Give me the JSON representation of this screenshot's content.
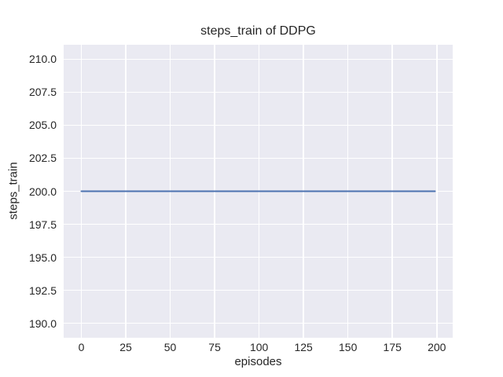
{
  "chart_data": {
    "type": "line",
    "title": "steps_train of DDPG",
    "xlabel": "episodes",
    "ylabel": "steps_train",
    "xlim": [
      -9.95,
      208.95
    ],
    "ylim": [
      188.9,
      211.1
    ],
    "x_ticks": [
      0,
      25,
      50,
      75,
      100,
      125,
      150,
      175,
      200
    ],
    "x_tick_labels": [
      "0",
      "25",
      "50",
      "75",
      "100",
      "125",
      "150",
      "175",
      "200"
    ],
    "y_ticks": [
      190.0,
      192.5,
      195.0,
      197.5,
      200.0,
      202.5,
      205.0,
      207.5,
      210.0
    ],
    "y_tick_labels": [
      "190.0",
      "192.5",
      "195.0",
      "197.5",
      "200.0",
      "202.5",
      "205.0",
      "207.5",
      "210.0"
    ],
    "grid": true,
    "legend": false,
    "series": [
      {
        "name": "steps_train",
        "color": "#4c72b0",
        "x": [
          0,
          199
        ],
        "y": [
          200,
          200
        ]
      }
    ],
    "style": {
      "plot_background": "#eaeaf2",
      "grid_color": "#ffffff",
      "text_color": "#262626",
      "figure_background": "#ffffff",
      "line_width": 2
    }
  }
}
